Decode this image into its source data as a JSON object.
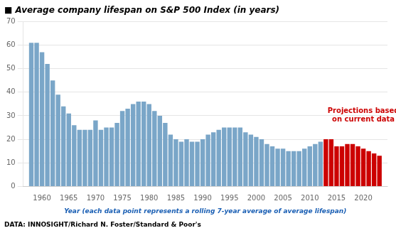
{
  "chart_data": {
    "type": "bar",
    "title": "■ Average company lifespan on S&P 500 Index (in years)",
    "xlabel": "Year (each data point represents a rolling 7-year average of average lifespan)",
    "xlabel_color": "#1a5fb4",
    "footnote": "DATA: INNOSIGHT/Richard N. Foster/Standard & Poor's",
    "x": [
      1958,
      1959,
      1960,
      1961,
      1962,
      1963,
      1964,
      1965,
      1966,
      1967,
      1968,
      1969,
      1970,
      1971,
      1972,
      1973,
      1974,
      1975,
      1976,
      1977,
      1978,
      1979,
      1980,
      1981,
      1982,
      1983,
      1984,
      1985,
      1986,
      1987,
      1988,
      1989,
      1990,
      1991,
      1992,
      1993,
      1994,
      1995,
      1996,
      1997,
      1998,
      1999,
      2000,
      2001,
      2002,
      2003,
      2004,
      2005,
      2006,
      2007,
      2008,
      2009,
      2010,
      2011,
      2012,
      2013,
      2014,
      2015,
      2016,
      2017,
      2018,
      2019,
      2020,
      2021,
      2022,
      2023
    ],
    "values": [
      61,
      61,
      57,
      52,
      45,
      39,
      34,
      31,
      26,
      24,
      24,
      24,
      28,
      24,
      25,
      25,
      27,
      32,
      33,
      35,
      36,
      36,
      35,
      32,
      30,
      27,
      22,
      20,
      19,
      20,
      19,
      19,
      20,
      22,
      23,
      24,
      25,
      25,
      25,
      25,
      23,
      22,
      21,
      20,
      18,
      17,
      16,
      16,
      15,
      15,
      15,
      16,
      17,
      18,
      19,
      20,
      20,
      17,
      17,
      18,
      18,
      17,
      16,
      15,
      14,
      13
    ],
    "colors": [
      "#7aa6c8",
      "#7aa6c8",
      "#7aa6c8",
      "#7aa6c8",
      "#7aa6c8",
      "#7aa6c8",
      "#7aa6c8",
      "#7aa6c8",
      "#7aa6c8",
      "#7aa6c8",
      "#7aa6c8",
      "#7aa6c8",
      "#7aa6c8",
      "#7aa6c8",
      "#7aa6c8",
      "#7aa6c8",
      "#7aa6c8",
      "#7aa6c8",
      "#7aa6c8",
      "#7aa6c8",
      "#7aa6c8",
      "#7aa6c8",
      "#7aa6c8",
      "#7aa6c8",
      "#7aa6c8",
      "#7aa6c8",
      "#7aa6c8",
      "#7aa6c8",
      "#7aa6c8",
      "#7aa6c8",
      "#7aa6c8",
      "#7aa6c8",
      "#7aa6c8",
      "#7aa6c8",
      "#7aa6c8",
      "#7aa6c8",
      "#7aa6c8",
      "#7aa6c8",
      "#7aa6c8",
      "#7aa6c8",
      "#7aa6c8",
      "#7aa6c8",
      "#7aa6c8",
      "#7aa6c8",
      "#7aa6c8",
      "#7aa6c8",
      "#7aa6c8",
      "#7aa6c8",
      "#7aa6c8",
      "#7aa6c8",
      "#7aa6c8",
      "#7aa6c8",
      "#7aa6c8",
      "#7aa6c8",
      "#7aa6c8",
      "#cc0000",
      "#cc0000",
      "#cc0000",
      "#cc0000",
      "#cc0000",
      "#cc0000",
      "#cc0000",
      "#cc0000",
      "#cc0000",
      "#cc0000",
      "#cc0000"
    ],
    "xlim": [
      1956.5,
      2024.5
    ],
    "xticks": [
      1960,
      1965,
      1970,
      1975,
      1980,
      1985,
      1990,
      1995,
      2000,
      2005,
      2010,
      2015,
      2020
    ],
    "ylim": [
      0,
      70
    ],
    "yticks": [
      0,
      10,
      20,
      30,
      40,
      50,
      60,
      70
    ],
    "grid": true,
    "annotations": [
      {
        "text": "Projections based\non current data",
        "x": 2020,
        "y": 27,
        "color": "#cc0000"
      }
    ]
  }
}
